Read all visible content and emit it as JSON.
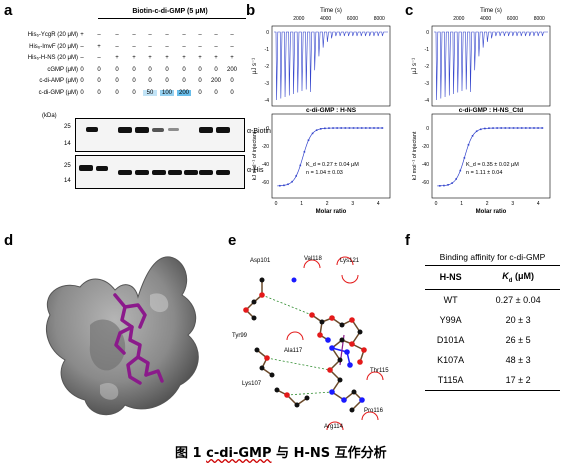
{
  "panels": {
    "a": "a",
    "b": "b",
    "c": "c",
    "d": "d",
    "e": "e",
    "f": "f"
  },
  "blot": {
    "header": "Biotin-c-di-GMP (5 μM)",
    "rows": [
      {
        "label": "His₆-YcgR (20 μM)",
        "values": [
          "+",
          "–",
          "–",
          "–",
          "–",
          "–",
          "–",
          "–",
          "–",
          "–"
        ]
      },
      {
        "label": "His₆-ImvF (20 μM)",
        "values": [
          "–",
          "+",
          "–",
          "–",
          "–",
          "–",
          "–",
          "–",
          "–",
          "–"
        ]
      },
      {
        "label": "His₆-H-NS (20 μM)",
        "values": [
          "–",
          "–",
          "+",
          "+",
          "+",
          "+",
          "+",
          "+",
          "+",
          "+"
        ]
      },
      {
        "label": "cGMP (μM)",
        "values": [
          "0",
          "0",
          "0",
          "0",
          "0",
          "0",
          "0",
          "0",
          "0",
          "200"
        ]
      },
      {
        "label": "c-di-AMP (μM)",
        "values": [
          "0",
          "0",
          "0",
          "0",
          "0",
          "0",
          "0",
          "0",
          "200",
          "0"
        ]
      },
      {
        "label": "c-di-GMP (μM)",
        "values": [
          "0",
          "0",
          "0",
          "0",
          "50",
          "100",
          "200",
          "0",
          "0",
          "0"
        ]
      }
    ],
    "kda": "(kDa)",
    "markers_top": [
      "25",
      "14"
    ],
    "markers_bottom": [
      "25",
      "14"
    ],
    "antibody_top": "α-Biotin",
    "antibody_bottom": "α-His"
  },
  "itc_b": {
    "time_label": "Time (s)",
    "time_ticks": [
      "2000",
      "4000",
      "6000",
      "8000"
    ],
    "top_ylabel": "μJ s⁻¹",
    "bottom_ylabel": "kJ mol⁻¹ of injectant",
    "title": "c-di-GMP : H-NS",
    "kd": "K_d = 0.27 ± 0.04 μM",
    "n": "n = 1.04 ± 0.03",
    "xlabel": "Molar ratio",
    "x_ticks": [
      "0",
      "1",
      "2",
      "3",
      "4"
    ],
    "y_ticks_top": [
      "0",
      "-1",
      "-2",
      "-3",
      "-4"
    ],
    "y_ticks_bottom": [
      "0",
      "-20",
      "-40",
      "-60"
    ]
  },
  "itc_c": {
    "time_label": "Time (s)",
    "time_ticks": [
      "2000",
      "4000",
      "6000",
      "8000"
    ],
    "top_ylabel": "μJ s⁻¹",
    "bottom_ylabel": "kJ mol⁻¹ of injectant",
    "title": "c-di-GMP : H-NS_Ctd",
    "kd": "K_d = 0.35 ± 0.02 μM",
    "n": "n = 1.11 ± 0.04",
    "xlabel": "Molar ratio",
    "x_ticks": [
      "0",
      "1",
      "2",
      "3",
      "4"
    ],
    "y_ticks_top": [
      "0",
      "-1",
      "-2",
      "-3",
      "-4"
    ],
    "y_ticks_bottom": [
      "0",
      "-20",
      "-40",
      "-60"
    ]
  },
  "interaction": {
    "residues": [
      "Asp101",
      "Val118",
      "Lys121",
      "Tyr99",
      "Ala117",
      "Thr115",
      "Lys107",
      "Pro116",
      "Arg114"
    ]
  },
  "affinity": {
    "title": "Binding affinity for c-di-GMP",
    "col1": "H-NS",
    "col2": "K_d (μM)",
    "rows": [
      {
        "name": "WT",
        "kd": "0.27 ± 0.04"
      },
      {
        "name": "Y99A",
        "kd": "20 ± 3"
      },
      {
        "name": "D101A",
        "kd": "26 ± 5"
      },
      {
        "name": "K107A",
        "kd": "48 ± 3"
      },
      {
        "name": "T115A",
        "kd": "17 ± 2"
      }
    ]
  },
  "caption": {
    "prefix": "图 1 ",
    "highlight": "c-di-GMP",
    "suffix": " 与 H-NS 互作分析"
  },
  "colors": {
    "itc_line": "#3344cc",
    "ligand": "#8b1a8b",
    "surface": "#8a8a8a",
    "highlight": "#4fb3e8"
  }
}
